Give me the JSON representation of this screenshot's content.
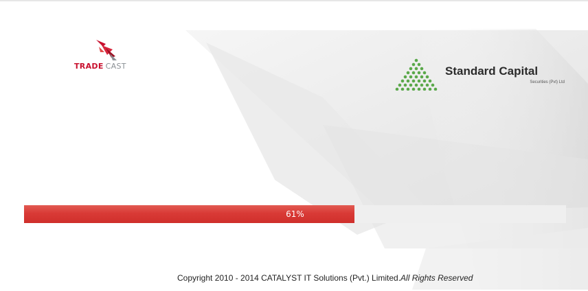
{
  "branding": {
    "tradecast": {
      "trade": "TRADE",
      "cast": "CAST",
      "icon": "tradecast-logo-icon"
    },
    "standard_capital": {
      "title": "Standard Capital",
      "subtitle": "Securities (Pvt) Ltd",
      "icon": "green-pyramid-icon"
    }
  },
  "progress": {
    "value": 61,
    "label": "61%",
    "fill_color": "#d93a36",
    "track_color": "#efefef"
  },
  "footer": {
    "copyright": "Copyright 2010 - 2014 CATALYST IT Solutions (Pvt.) Limited.",
    "rights": "All Rights Reserved"
  }
}
